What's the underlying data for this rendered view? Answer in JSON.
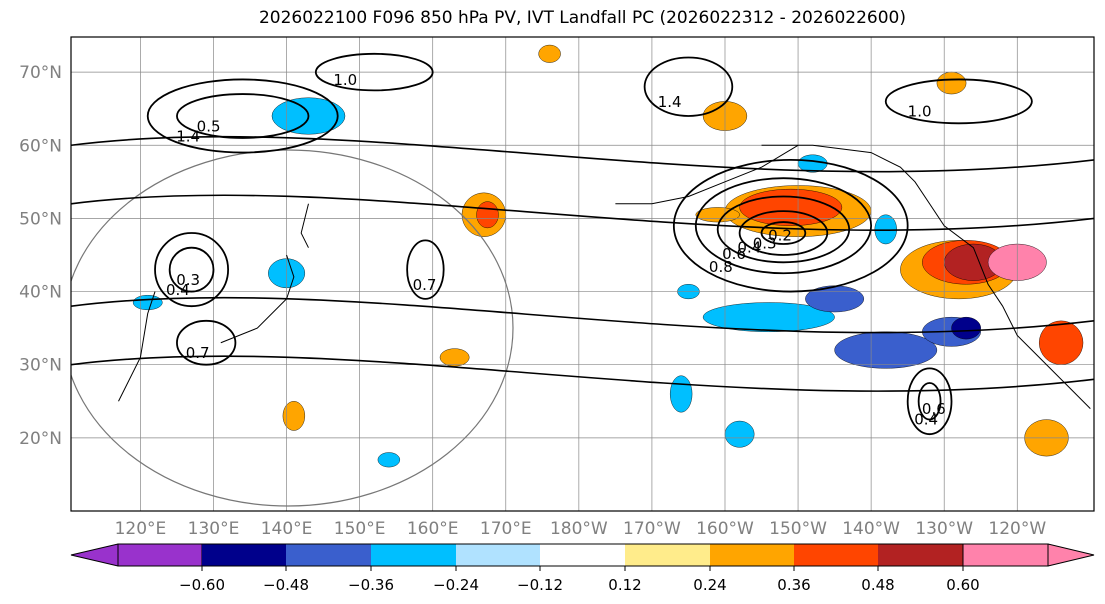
{
  "chart_data": {
    "type": "heatmap",
    "title": "2026022100 F096 850 hPa PV, IVT Landfall PC (2026022312 - 2026022600)",
    "xlim": [
      110.5,
      250.5
    ],
    "ylim": [
      10,
      74.8
    ],
    "x_ticks": [
      {
        "lon": 120,
        "label": "120°E"
      },
      {
        "lon": 130,
        "label": "130°E"
      },
      {
        "lon": 140,
        "label": "140°E"
      },
      {
        "lon": 150,
        "label": "150°E"
      },
      {
        "lon": 160,
        "label": "160°E"
      },
      {
        "lon": 170,
        "label": "170°E"
      },
      {
        "lon": 180,
        "label": "180°W"
      },
      {
        "lon": 190,
        "label": "170°W"
      },
      {
        "lon": 200,
        "label": "160°W"
      },
      {
        "lon": 210,
        "label": "150°W"
      },
      {
        "lon": 220,
        "label": "140°W"
      },
      {
        "lon": 230,
        "label": "130°W"
      },
      {
        "lon": 240,
        "label": "120°W"
      }
    ],
    "y_ticks": [
      {
        "lat": 20,
        "label": "20°N"
      },
      {
        "lat": 30,
        "label": "30°N"
      },
      {
        "lat": 40,
        "label": "40°N"
      },
      {
        "lat": 50,
        "label": "50°N"
      },
      {
        "lat": 60,
        "label": "60°N"
      },
      {
        "lat": 70,
        "label": "70°N"
      }
    ],
    "colorbar": {
      "levels": [
        "−0.60",
        "−0.48",
        "−0.36",
        "−0.24",
        "−0.12",
        "0.12",
        "0.24",
        "0.36",
        "0.48",
        "0.60"
      ],
      "colors": [
        "#9932cc",
        "#00008b",
        "#3a5fcd",
        "#00bfff",
        "#b0e2ff",
        "#ffffff",
        "#ffec8b",
        "#ffa500",
        "#ff4500",
        "#b22222",
        "#ff82ab"
      ]
    },
    "shaded": [
      {
        "lon": 210,
        "lat": 51,
        "rx": 10,
        "ry": 3.5,
        "v": 0.3
      },
      {
        "lon": 209,
        "lat": 51.5,
        "rx": 7,
        "ry": 2.5,
        "v": 0.4
      },
      {
        "lon": 232,
        "lat": 43,
        "rx": 8,
        "ry": 4,
        "v": 0.3
      },
      {
        "lon": 233,
        "lat": 44,
        "rx": 6,
        "ry": 3,
        "v": 0.4
      },
      {
        "lon": 234,
        "lat": 44,
        "rx": 4,
        "ry": 2.5,
        "v": 0.5
      },
      {
        "lon": 240,
        "lat": 44,
        "rx": 4,
        "ry": 2.5,
        "v": 0.65
      },
      {
        "lon": 206,
        "lat": 36.5,
        "rx": 9,
        "ry": 2,
        "v": -0.3
      },
      {
        "lon": 215,
        "lat": 39,
        "rx": 4,
        "ry": 1.8,
        "v": -0.4
      },
      {
        "lon": 222,
        "lat": 32,
        "rx": 7,
        "ry": 2.5,
        "v": -0.4
      },
      {
        "lon": 231,
        "lat": 34.5,
        "rx": 4,
        "ry": 2,
        "v": -0.4
      },
      {
        "lon": 233,
        "lat": 35,
        "rx": 2,
        "ry": 1.5,
        "v": -0.5
      },
      {
        "lon": 143,
        "lat": 64,
        "rx": 5,
        "ry": 2.5,
        "v": -0.3
      },
      {
        "lon": 140,
        "lat": 42.5,
        "rx": 2.5,
        "ry": 2,
        "v": -0.3
      },
      {
        "lon": 121,
        "lat": 38.5,
        "rx": 2,
        "ry": 1,
        "v": -0.3
      },
      {
        "lon": 167,
        "lat": 50.5,
        "rx": 3,
        "ry": 3,
        "v": 0.3
      },
      {
        "lon": 167.5,
        "lat": 50.5,
        "rx": 1.5,
        "ry": 1.8,
        "v": 0.4
      },
      {
        "lon": 141,
        "lat": 23,
        "rx": 1.5,
        "ry": 2,
        "v": 0.3
      },
      {
        "lon": 163,
        "lat": 31,
        "rx": 2,
        "ry": 1.2,
        "v": 0.3
      },
      {
        "lon": 176,
        "lat": 72.5,
        "rx": 1.5,
        "ry": 1.2,
        "v": 0.3
      },
      {
        "lon": 200,
        "lat": 64,
        "rx": 3,
        "ry": 2,
        "v": 0.3
      },
      {
        "lon": 212,
        "lat": 57.5,
        "rx": 2,
        "ry": 1.2,
        "v": -0.3
      },
      {
        "lon": 231,
        "lat": 68.5,
        "rx": 2,
        "ry": 1.5,
        "v": 0.3
      },
      {
        "lon": 246,
        "lat": 33,
        "rx": 3,
        "ry": 3,
        "v": 0.4
      },
      {
        "lon": 244,
        "lat": 20,
        "rx": 3,
        "ry": 2.5,
        "v": 0.3
      },
      {
        "lon": 194,
        "lat": 26,
        "rx": 1.5,
        "ry": 2.5,
        "v": -0.3
      },
      {
        "lon": 202,
        "lat": 20.5,
        "rx": 2,
        "ry": 1.8,
        "v": -0.3
      },
      {
        "lon": 154,
        "lat": 17,
        "rx": 1.5,
        "ry": 1,
        "v": -0.3
      },
      {
        "lon": 199,
        "lat": 50.5,
        "rx": 3,
        "ry": 1,
        "v": 0.3
      },
      {
        "lon": 195,
        "lat": 40,
        "rx": 1.5,
        "ry": 1,
        "v": -0.3
      },
      {
        "lon": 222,
        "lat": 48.5,
        "rx": 1.5,
        "ry": 2,
        "v": -0.3
      }
    ],
    "contours": [
      {
        "lon": 208,
        "lat": 48,
        "rx": 3,
        "ry": 1.5,
        "v": "0.2"
      },
      {
        "lon": 208,
        "lat": 48,
        "rx": 6,
        "ry": 3,
        "v": "0.3"
      },
      {
        "lon": 208,
        "lat": 48.5,
        "rx": 9,
        "ry": 4.5,
        "v": "0.4"
      },
      {
        "lon": 208,
        "lat": 49,
        "rx": 12,
        "ry": 6.5,
        "v": "0.6"
      },
      {
        "lon": 209,
        "lat": 49,
        "rx": 16,
        "ry": 9,
        "v": "0.8"
      },
      {
        "lon": 228,
        "lat": 25,
        "rx": 1.5,
        "ry": 2.5,
        "v": "0.6"
      },
      {
        "lon": 228,
        "lat": 25,
        "rx": 3,
        "ry": 4.5,
        "v": "0.4"
      },
      {
        "lon": 159,
        "lat": 43,
        "rx": 2.5,
        "ry": 4,
        "v": "0.7"
      },
      {
        "lon": 127,
        "lat": 43,
        "rx": 3,
        "ry": 3,
        "v": "0.3"
      },
      {
        "lon": 127,
        "lat": 43,
        "rx": 5,
        "ry": 5,
        "v": "0.4"
      },
      {
        "lon": 129,
        "lat": 33,
        "rx": 4,
        "ry": 3,
        "v": "0.7"
      },
      {
        "lon": 134,
        "lat": 64,
        "rx": 9,
        "ry": 3,
        "v": "0.5"
      },
      {
        "lon": 134,
        "lat": 64,
        "rx": 13,
        "ry": 5,
        "v": "1.4"
      },
      {
        "lon": 152,
        "lat": 70,
        "rx": 8,
        "ry": 2.5,
        "v": "1.0"
      },
      {
        "lon": 195,
        "lat": 68,
        "rx": 6,
        "ry": 4,
        "v": "1.4"
      },
      {
        "lon": 232,
        "lat": 66,
        "rx": 10,
        "ry": 3,
        "v": "1.0"
      }
    ]
  }
}
